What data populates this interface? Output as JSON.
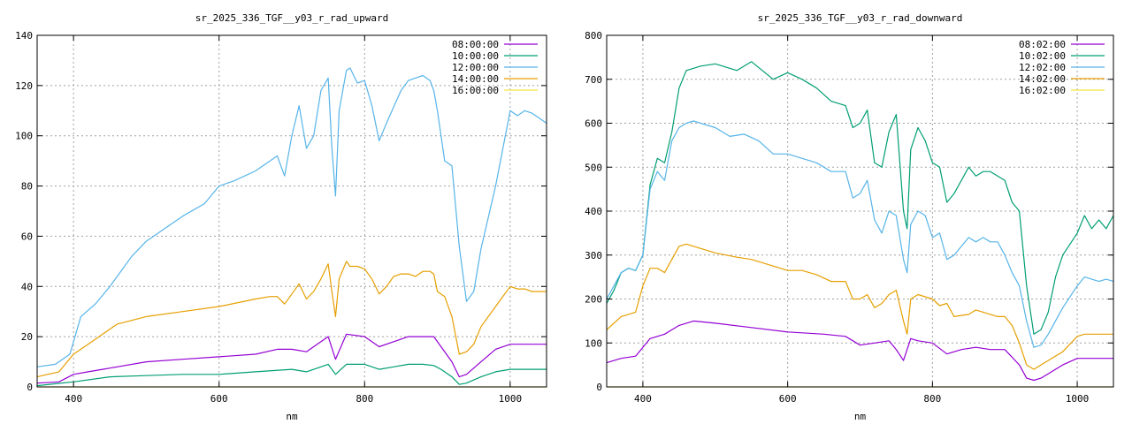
{
  "chart_data": [
    {
      "type": "line",
      "title": "sr_2025_336_TGF__y03_r_rad_upward",
      "xlabel": "nm",
      "ylabel": "",
      "xlim": [
        350,
        1050
      ],
      "ylim": [
        0,
        140
      ],
      "xticks": [
        400,
        600,
        800,
        1000
      ],
      "yticks": [
        0,
        20,
        40,
        60,
        80,
        100,
        120,
        140
      ],
      "grid": true,
      "legend_position": "top-right",
      "series": [
        {
          "name": "08:00:00",
          "color": "#9400d3",
          "x": [
            350,
            380,
            400,
            420,
            440,
            460,
            500,
            550,
            600,
            650,
            680,
            700,
            720,
            740,
            750,
            760,
            775,
            800,
            820,
            840,
            860,
            880,
            895,
            905,
            920,
            930,
            940,
            960,
            980,
            1000,
            1030,
            1050
          ],
          "y": [
            1.5,
            2,
            5,
            6,
            7,
            8,
            10,
            11,
            12,
            13,
            15,
            15,
            14,
            18,
            20,
            11,
            21,
            20,
            16,
            18,
            20,
            20,
            20,
            16,
            10,
            4,
            5,
            10,
            15,
            17,
            17,
            17
          ]
        },
        {
          "name": "10:00:00",
          "color": "#009e73",
          "x": [
            350,
            400,
            450,
            500,
            550,
            600,
            650,
            700,
            720,
            740,
            750,
            760,
            775,
            800,
            820,
            840,
            860,
            880,
            895,
            905,
            920,
            930,
            940,
            960,
            980,
            1000,
            1030,
            1050
          ],
          "y": [
            0.5,
            2,
            4,
            4.5,
            5,
            5,
            6,
            7,
            6,
            8,
            9,
            5,
            9,
            9,
            7,
            8,
            9,
            9,
            8.5,
            7,
            4,
            1,
            1.5,
            4,
            6,
            7,
            7,
            7
          ]
        },
        {
          "name": "12:00:00",
          "color": "#56b4e9",
          "x": [
            350,
            375,
            395,
            410,
            430,
            450,
            480,
            500,
            550,
            580,
            600,
            620,
            650,
            680,
            690,
            700,
            710,
            720,
            730,
            740,
            750,
            755,
            760,
            765,
            775,
            780,
            790,
            800,
            810,
            820,
            830,
            850,
            860,
            870,
            880,
            890,
            895,
            900,
            910,
            920,
            930,
            940,
            950,
            960,
            980,
            1000,
            1010,
            1020,
            1030,
            1040,
            1050
          ],
          "y": [
            8,
            9,
            13,
            28,
            33,
            40,
            52,
            58,
            68,
            73,
            80,
            82,
            86,
            92,
            84,
            100,
            112,
            95,
            100,
            118,
            123,
            95,
            76,
            110,
            126,
            127,
            121,
            122,
            112,
            98,
            105,
            118,
            122,
            123,
            124,
            122,
            118,
            110,
            90,
            88,
            56,
            34,
            38,
            55,
            80,
            110,
            108,
            110,
            109,
            107,
            105
          ]
        },
        {
          "name": "14:00:00",
          "color": "#e69f00",
          "x": [
            350,
            380,
            400,
            420,
            440,
            460,
            500,
            550,
            600,
            650,
            670,
            680,
            690,
            700,
            710,
            720,
            730,
            740,
            750,
            755,
            760,
            765,
            775,
            780,
            790,
            800,
            810,
            820,
            830,
            840,
            850,
            860,
            870,
            880,
            890,
            895,
            900,
            910,
            920,
            930,
            940,
            950,
            960,
            980,
            1000,
            1010,
            1020,
            1030,
            1040,
            1050
          ],
          "y": [
            4,
            6,
            13,
            17,
            21,
            25,
            28,
            30,
            32,
            35,
            36,
            36,
            33,
            37,
            41,
            35,
            38,
            43,
            49,
            38,
            28,
            43,
            50,
            48,
            48,
            47,
            43,
            37,
            40,
            44,
            45,
            45,
            44,
            46,
            46,
            45,
            38,
            36,
            28,
            13,
            14,
            17,
            24,
            32,
            40,
            39,
            39,
            38,
            38,
            38
          ]
        },
        {
          "name": "16:00:00",
          "color": "#f0e442",
          "x": [
            350,
            1050
          ],
          "y": [
            0,
            0
          ]
        }
      ]
    },
    {
      "type": "line",
      "title": "sr_2025_336_TGF__y03_r_rad_downward",
      "xlabel": "nm",
      "ylabel": "",
      "xlim": [
        350,
        1050
      ],
      "ylim": [
        0,
        800
      ],
      "xticks": [
        400,
        600,
        800,
        1000
      ],
      "yticks": [
        0,
        100,
        200,
        300,
        400,
        500,
        600,
        700,
        800
      ],
      "grid": true,
      "legend_position": "top-right",
      "series": [
        {
          "name": "08:02:00",
          "color": "#9400d3",
          "x": [
            350,
            370,
            390,
            410,
            430,
            450,
            470,
            500,
            550,
            600,
            650,
            680,
            700,
            720,
            740,
            750,
            760,
            770,
            780,
            800,
            820,
            840,
            860,
            880,
            900,
            920,
            930,
            940,
            950,
            960,
            980,
            1000,
            1030,
            1050
          ],
          "y": [
            55,
            65,
            70,
            110,
            120,
            140,
            150,
            145,
            135,
            125,
            120,
            115,
            95,
            100,
            105,
            85,
            60,
            110,
            105,
            100,
            75,
            85,
            90,
            85,
            85,
            50,
            20,
            15,
            20,
            30,
            50,
            65,
            65,
            65
          ]
        },
        {
          "name": "10:02:00",
          "color": "#009e73",
          "x": [
            350,
            360,
            370,
            380,
            390,
            400,
            410,
            420,
            430,
            440,
            450,
            460,
            480,
            500,
            530,
            550,
            580,
            600,
            620,
            640,
            660,
            680,
            690,
            700,
            710,
            720,
            730,
            740,
            750,
            760,
            765,
            770,
            780,
            790,
            800,
            810,
            820,
            830,
            850,
            860,
            870,
            880,
            890,
            900,
            910,
            920,
            930,
            940,
            950,
            960,
            970,
            980,
            1000,
            1010,
            1020,
            1030,
            1040,
            1050
          ],
          "y": [
            190,
            220,
            260,
            270,
            265,
            300,
            460,
            520,
            510,
            580,
            680,
            720,
            730,
            735,
            720,
            740,
            700,
            715,
            700,
            680,
            650,
            640,
            590,
            600,
            630,
            510,
            500,
            580,
            620,
            400,
            360,
            540,
            590,
            560,
            510,
            500,
            420,
            440,
            500,
            480,
            490,
            490,
            480,
            470,
            420,
            400,
            230,
            120,
            130,
            170,
            250,
            300,
            350,
            390,
            360,
            380,
            360,
            390
          ]
        },
        {
          "name": "12:02:00",
          "color": "#56b4e9",
          "x": [
            350,
            360,
            370,
            380,
            390,
            400,
            410,
            420,
            430,
            440,
            450,
            460,
            470,
            480,
            500,
            520,
            540,
            560,
            580,
            600,
            620,
            640,
            660,
            680,
            690,
            700,
            710,
            720,
            730,
            740,
            750,
            760,
            765,
            770,
            780,
            790,
            800,
            810,
            820,
            830,
            850,
            860,
            870,
            880,
            890,
            900,
            910,
            920,
            930,
            940,
            950,
            960,
            980,
            1000,
            1010,
            1020,
            1030,
            1040,
            1050
          ],
          "y": [
            200,
            230,
            260,
            270,
            265,
            300,
            450,
            490,
            470,
            560,
            590,
            600,
            605,
            600,
            590,
            570,
            575,
            560,
            530,
            530,
            520,
            510,
            490,
            490,
            430,
            440,
            470,
            380,
            350,
            400,
            390,
            290,
            260,
            370,
            400,
            390,
            340,
            350,
            290,
            300,
            340,
            330,
            340,
            330,
            330,
            300,
            260,
            230,
            150,
            90,
            95,
            120,
            180,
            230,
            250,
            245,
            240,
            245,
            240
          ]
        },
        {
          "name": "14:02:00",
          "color": "#e69f00",
          "x": [
            350,
            370,
            390,
            400,
            410,
            420,
            430,
            440,
            450,
            460,
            470,
            480,
            500,
            530,
            550,
            580,
            600,
            620,
            640,
            660,
            680,
            690,
            700,
            710,
            720,
            730,
            740,
            750,
            760,
            765,
            770,
            780,
            790,
            800,
            810,
            820,
            830,
            850,
            860,
            870,
            880,
            890,
            900,
            910,
            920,
            930,
            940,
            950,
            960,
            980,
            1000,
            1010,
            1020,
            1030,
            1040,
            1050
          ],
          "y": [
            130,
            160,
            170,
            230,
            270,
            270,
            260,
            290,
            320,
            325,
            320,
            315,
            305,
            295,
            290,
            275,
            265,
            265,
            255,
            240,
            240,
            200,
            200,
            210,
            180,
            190,
            210,
            220,
            150,
            120,
            200,
            210,
            205,
            200,
            185,
            190,
            160,
            165,
            175,
            170,
            165,
            160,
            160,
            140,
            100,
            50,
            40,
            50,
            60,
            80,
            115,
            120,
            120,
            120,
            120,
            120
          ]
        },
        {
          "name": "16:02:00",
          "color": "#f0e442",
          "x": [
            350,
            1050
          ],
          "y": [
            0,
            0
          ]
        }
      ]
    }
  ]
}
